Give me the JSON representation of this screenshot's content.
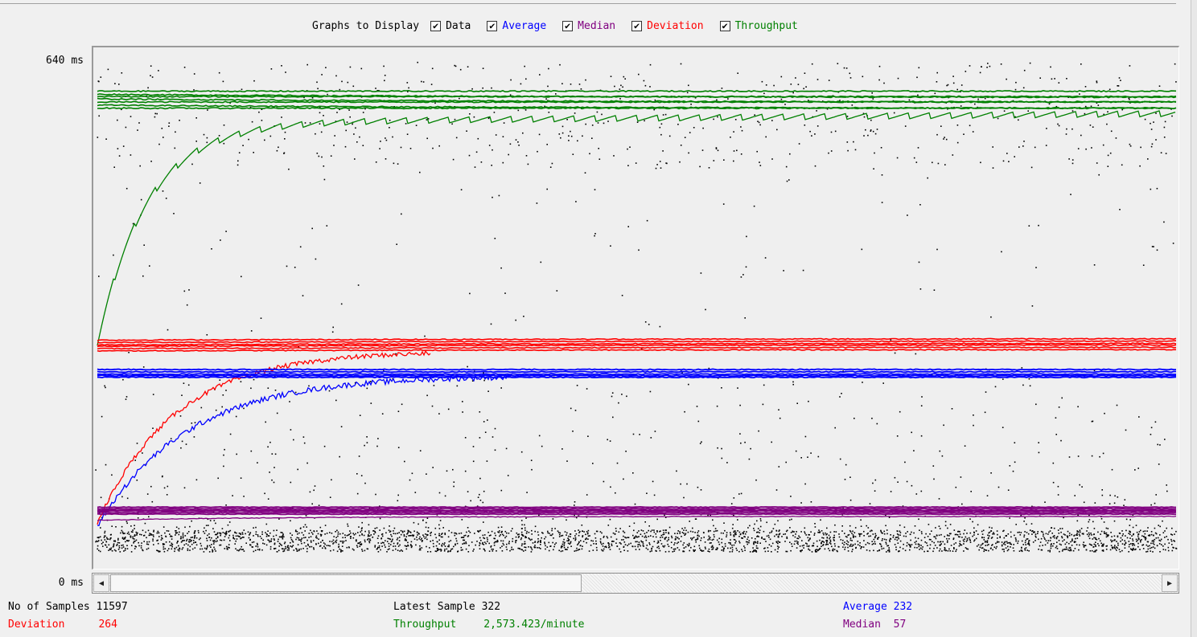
{
  "legend": {
    "caption": "Graphs to Display",
    "items": [
      {
        "label": "Data",
        "color": "#000000",
        "checked": true
      },
      {
        "label": "Average",
        "color": "#0000ff",
        "checked": true
      },
      {
        "label": "Median",
        "color": "#800080",
        "checked": true
      },
      {
        "label": "Deviation",
        "color": "#ff0000",
        "checked": true
      },
      {
        "label": "Throughput",
        "color": "#008000",
        "checked": true
      }
    ]
  },
  "axis": {
    "ymax_label": "640 ms",
    "ymin_label": "0 ms",
    "ymax": 640,
    "ymin": 0
  },
  "stats": {
    "samples_label": "No of Samples",
    "samples_value": "11597",
    "deviation_label": "Deviation",
    "deviation_value": "264",
    "latest_label": "Latest Sample",
    "latest_value": "322",
    "throughput_label": "Throughput",
    "throughput_value": "2,573.423/minute",
    "average_label": "Average",
    "average_value": "232",
    "median_label": "Median",
    "median_value": "57"
  },
  "colors": {
    "data": "#000000",
    "average": "#0000ff",
    "median": "#800080",
    "deviation": "#ff0000",
    "throughput": "#008000"
  },
  "icons": {
    "scroll_left": "arrow-left-icon",
    "scroll_right": "arrow-right-icon",
    "checkbox": "checkmark-icon"
  },
  "chart_data": {
    "type": "line",
    "ylabel": "",
    "ylim": [
      0,
      640
    ],
    "series": [
      {
        "name": "Average",
        "color": "#0000ff",
        "final_value": 232
      },
      {
        "name": "Median",
        "color": "#800080",
        "final_value": 57
      },
      {
        "name": "Deviation",
        "color": "#ff0000",
        "final_value": 264
      },
      {
        "name": "Throughput",
        "color": "#008000"
      },
      {
        "name": "Data",
        "color": "#000000"
      }
    ]
  }
}
